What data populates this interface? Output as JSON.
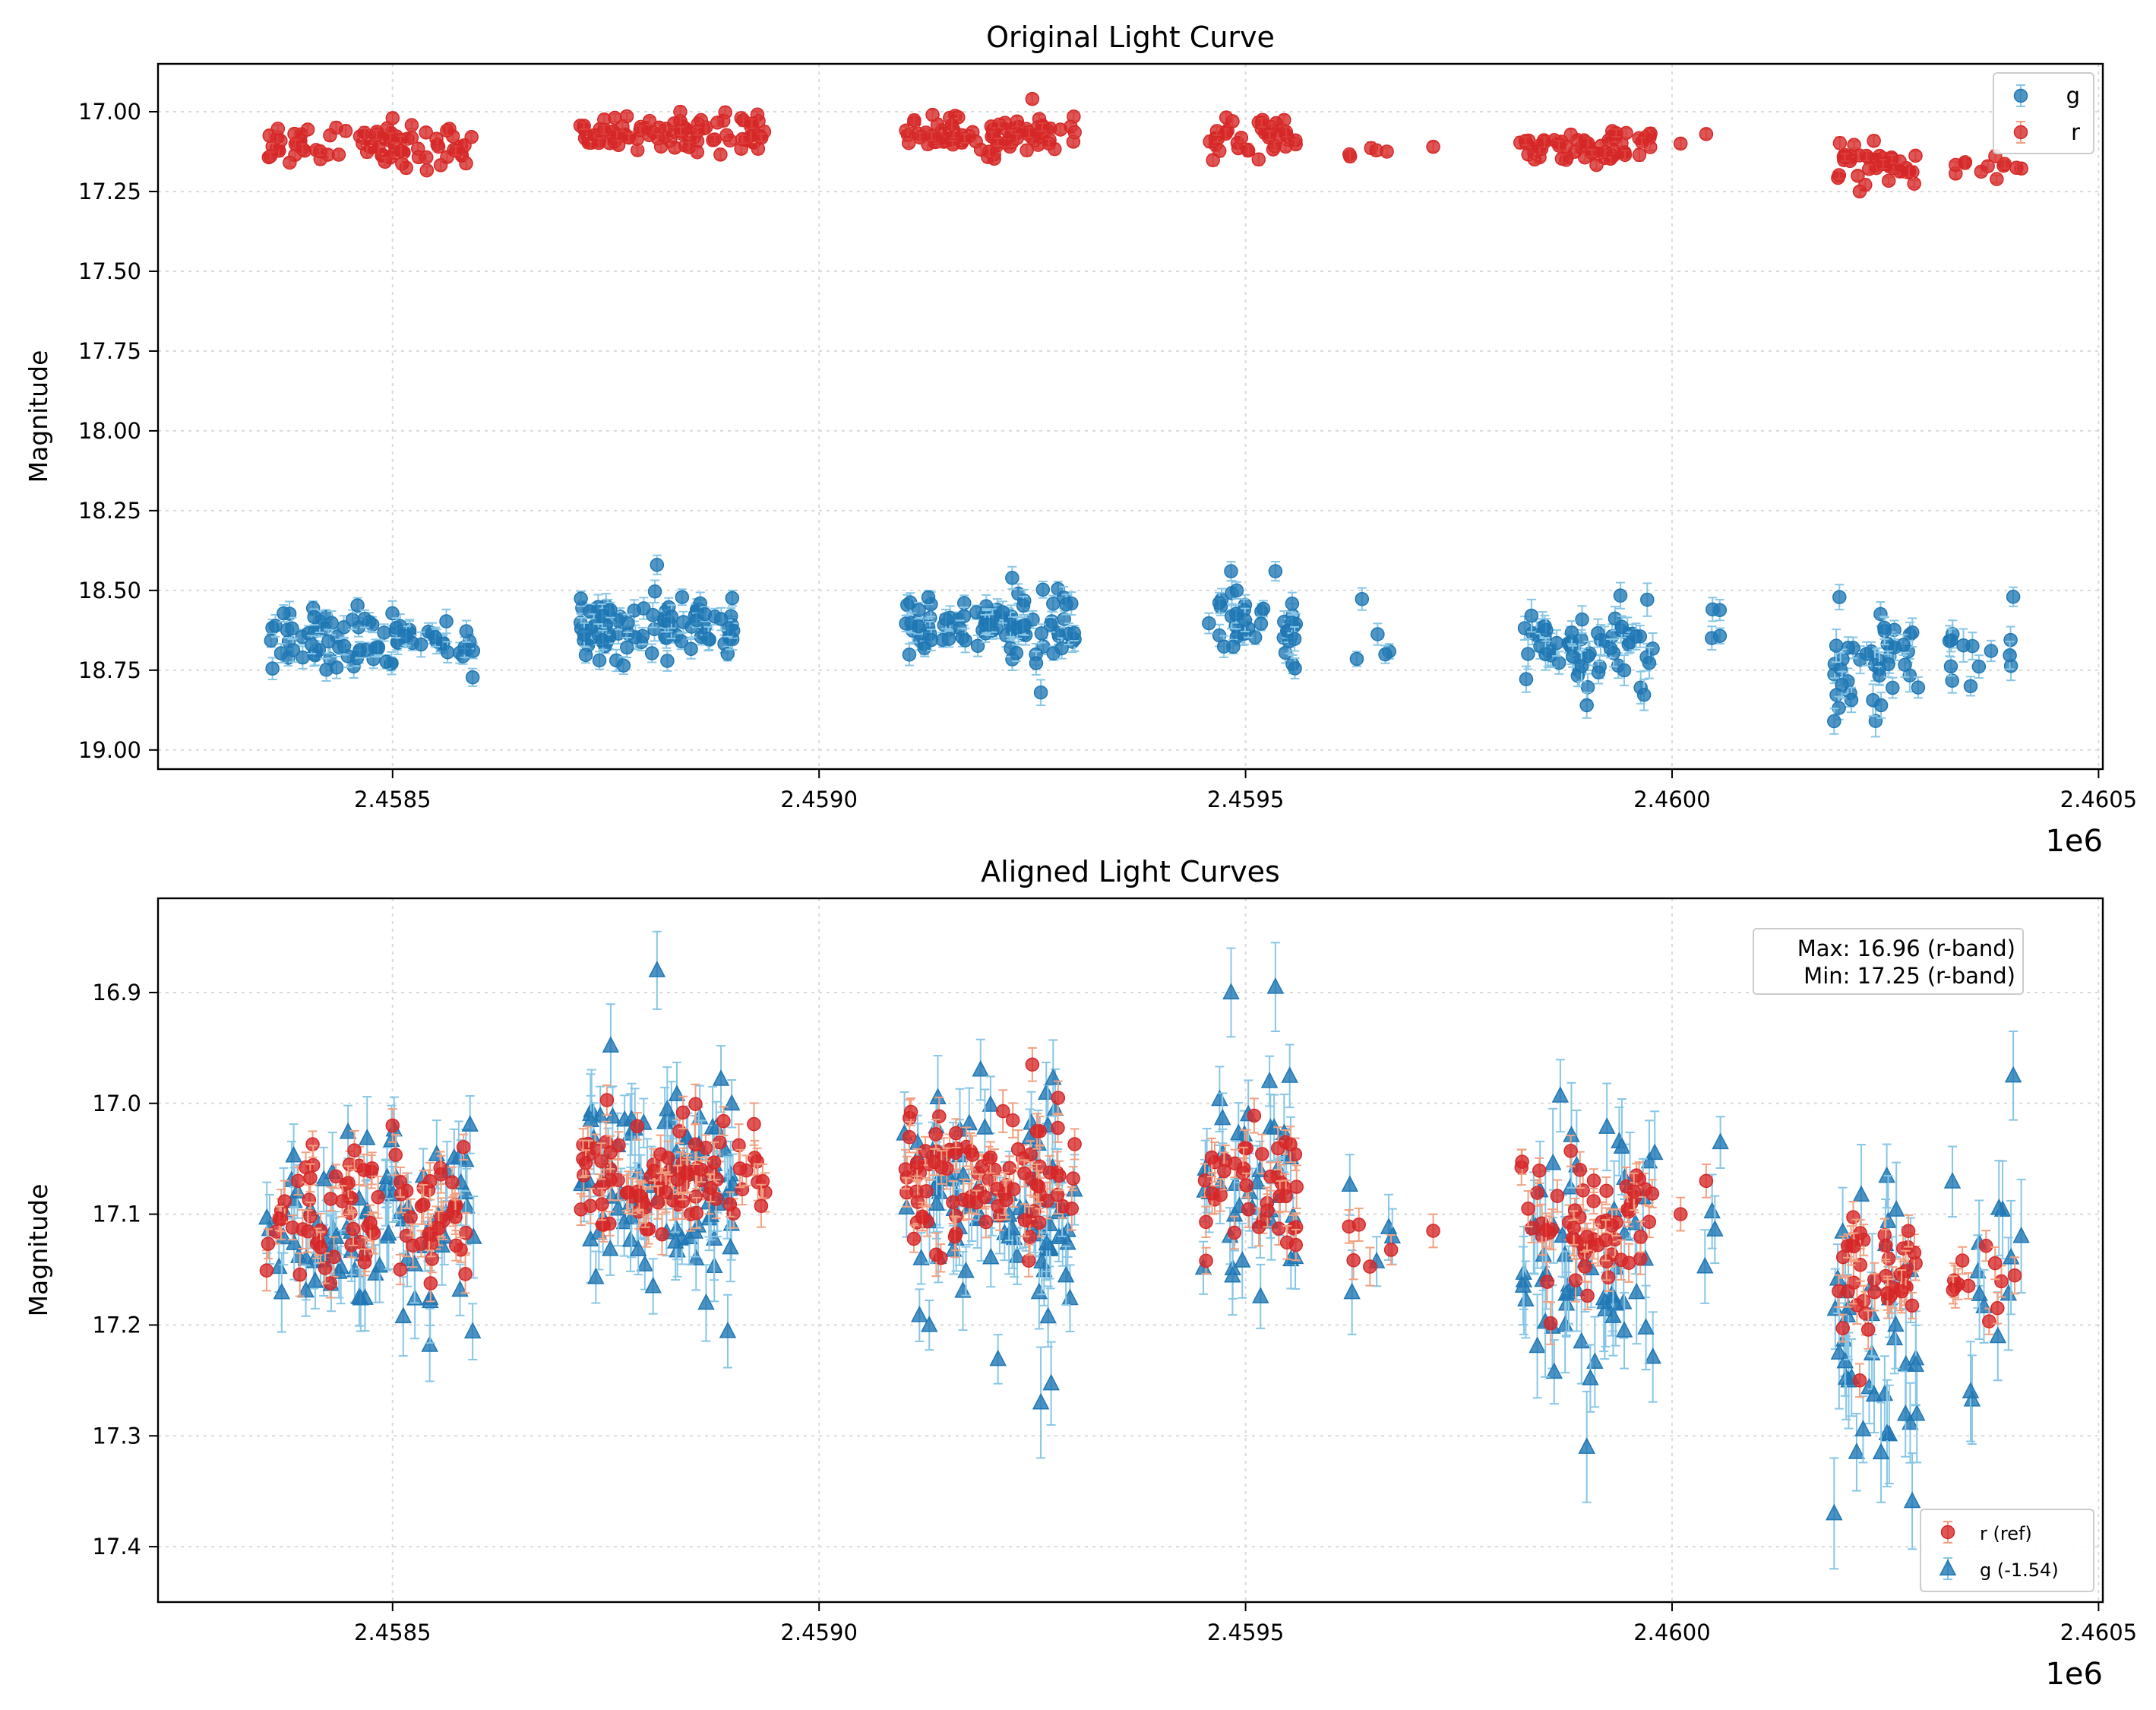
{
  "chart_data": [
    {
      "type": "scatter",
      "title": "Original Light Curve",
      "xlabel": "",
      "ylabel": "Magnitude",
      "x_offset_label": "1e6",
      "xlim": [
        2458225,
        2460505
      ],
      "ylim": [
        19.06,
        16.85
      ],
      "y_inverted": true,
      "grid": true,
      "legend_position": "top-right",
      "x_ticks": [
        2458500,
        2459000,
        2459500,
        2460000,
        2460500
      ],
      "x_tick_labels": [
        "2.4585",
        "2.4590",
        "2.4595",
        "2.4600",
        "2.4605"
      ],
      "y_ticks": [
        17.0,
        17.25,
        17.5,
        17.75,
        18.0,
        18.25,
        18.5,
        18.75,
        19.0
      ],
      "y_tick_labels": [
        "17.00",
        "17.25",
        "17.50",
        "17.75",
        "18.00",
        "18.25",
        "18.50",
        "18.75",
        "19.00"
      ],
      "series": [
        {
          "name": "g",
          "legend_label": "g",
          "marker": "circle",
          "color": "#1f77b4",
          "errcolor": "#87c6e6",
          "clusters": [
            {
              "x": [
                2458350,
                2458595
              ],
              "y": 18.65,
              "sy": 0.05,
              "n": 85,
              "err": 0.03
            },
            {
              "x": [
                2458720,
                2458900
              ],
              "y": 18.62,
              "sy": 0.05,
              "n": 90,
              "err": 0.03
            },
            {
              "x": [
                2459100,
                2459300
              ],
              "y": 18.62,
              "sy": 0.05,
              "n": 90,
              "err": 0.03
            },
            {
              "x": [
                2459450,
                2459560
              ],
              "y": 18.62,
              "sy": 0.05,
              "n": 40,
              "err": 0.03
            },
            {
              "x": [
                2459620,
                2459680
              ],
              "y": 18.68,
              "sy": 0.05,
              "n": 5,
              "err": 0.03
            },
            {
              "x": [
                2459820,
                2459980
              ],
              "y": 18.67,
              "sy": 0.06,
              "n": 60,
              "err": 0.04
            },
            {
              "x": [
                2460020,
                2460060
              ],
              "y": 18.62,
              "sy": 0.06,
              "n": 4,
              "err": 0.03
            },
            {
              "x": [
                2460190,
                2460290
              ],
              "y": 18.72,
              "sy": 0.07,
              "n": 40,
              "err": 0.04
            },
            {
              "x": [
                2460320,
                2460410
              ],
              "y": 18.7,
              "sy": 0.06,
              "n": 12,
              "err": 0.04
            }
          ],
          "points": [
            {
              "x": 2459483,
              "y": 18.44,
              "err": 0.03
            },
            {
              "x": 2459535,
              "y": 18.44,
              "err": 0.03
            },
            {
              "x": 2460400,
              "y": 18.52,
              "err": 0.03
            },
            {
              "x": 2458810,
              "y": 18.42,
              "err": 0.03
            },
            {
              "x": 2460190,
              "y": 18.91,
              "err": 0.04
            },
            {
              "x": 2460245,
              "y": 18.86,
              "err": 0.04
            },
            {
              "x": 2459900,
              "y": 18.86,
              "err": 0.04
            },
            {
              "x": 2459260,
              "y": 18.82,
              "err": 0.04
            },
            {
              "x": 2460350,
              "y": 18.8,
              "err": 0.03
            }
          ]
        },
        {
          "name": "r",
          "legend_label": "r",
          "marker": "circle",
          "color": "#d62728",
          "errcolor": "#f2a080",
          "clusters": [
            {
              "x": [
                2458350,
                2458595
              ],
              "y": 17.1,
              "sy": 0.03,
              "n": 85,
              "err": 0.015
            },
            {
              "x": [
                2458720,
                2458940
              ],
              "y": 17.07,
              "sy": 0.025,
              "n": 90,
              "err": 0.015
            },
            {
              "x": [
                2459100,
                2459300
              ],
              "y": 17.07,
              "sy": 0.03,
              "n": 90,
              "err": 0.015
            },
            {
              "x": [
                2459450,
                2459560
              ],
              "y": 17.08,
              "sy": 0.03,
              "n": 40,
              "err": 0.015
            },
            {
              "x": [
                2459620,
                2459680
              ],
              "y": 17.13,
              "sy": 0.015,
              "n": 5,
              "err": 0.015
            },
            {
              "x": [
                2459820,
                2459980
              ],
              "y": 17.11,
              "sy": 0.025,
              "n": 60,
              "err": 0.015
            },
            {
              "x": [
                2460190,
                2460290
              ],
              "y": 17.16,
              "sy": 0.03,
              "n": 40,
              "err": 0.015
            },
            {
              "x": [
                2460320,
                2460410
              ],
              "y": 17.17,
              "sy": 0.02,
              "n": 12,
              "err": 0.015
            }
          ],
          "points": [
            {
              "x": 2459250,
              "y": 16.96,
              "err": 0.015
            },
            {
              "x": 2458500,
              "y": 17.02,
              "err": 0.015
            },
            {
              "x": 2460010,
              "y": 17.1,
              "err": 0.015
            },
            {
              "x": 2460040,
              "y": 17.07,
              "err": 0.015
            },
            {
              "x": 2459720,
              "y": 17.11,
              "err": 0.015
            },
            {
              "x": 2460220,
              "y": 17.25,
              "err": 0.015
            }
          ]
        }
      ]
    },
    {
      "type": "scatter",
      "title": "Aligned Light Curves",
      "xlabel": "",
      "ylabel": "Magnitude",
      "x_offset_label": "1e6",
      "xlim": [
        2458225,
        2460505
      ],
      "ylim": [
        17.45,
        16.815
      ],
      "y_inverted": true,
      "grid": true,
      "legend_position": "bottom-right",
      "x_ticks": [
        2458500,
        2459000,
        2459500,
        2460000,
        2460500
      ],
      "x_tick_labels": [
        "2.4585",
        "2.4590",
        "2.4595",
        "2.4600",
        "2.4605"
      ],
      "y_ticks": [
        16.9,
        17.0,
        17.1,
        17.2,
        17.3,
        17.4
      ],
      "y_tick_labels": [
        "16.9",
        "17.0",
        "17.1",
        "17.2",
        "17.3",
        "17.4"
      ],
      "annotation": [
        "Max: 16.96 (r-band)",
        "Min: 17.25 (r-band)"
      ],
      "annotation_position": "top-right",
      "series": [
        {
          "name": "g (-1.54)",
          "legend_label": "g (-1.54)",
          "marker": "triangle",
          "color": "#1f77b4",
          "errcolor": "#87c6e6",
          "offset": -1.54,
          "clusters": [
            {
              "x": [
                2458350,
                2458595
              ],
              "y": 17.11,
              "sy": 0.05,
              "n": 85,
              "err": 0.03
            },
            {
              "x": [
                2458720,
                2458900
              ],
              "y": 17.08,
              "sy": 0.05,
              "n": 90,
              "err": 0.03
            },
            {
              "x": [
                2459100,
                2459300
              ],
              "y": 17.08,
              "sy": 0.05,
              "n": 90,
              "err": 0.03
            },
            {
              "x": [
                2459450,
                2459560
              ],
              "y": 17.08,
              "sy": 0.05,
              "n": 40,
              "err": 0.03
            },
            {
              "x": [
                2459620,
                2459680
              ],
              "y": 17.14,
              "sy": 0.05,
              "n": 5,
              "err": 0.03
            },
            {
              "x": [
                2459820,
                2459980
              ],
              "y": 17.13,
              "sy": 0.06,
              "n": 60,
              "err": 0.04
            },
            {
              "x": [
                2460020,
                2460060
              ],
              "y": 17.08,
              "sy": 0.06,
              "n": 4,
              "err": 0.03
            },
            {
              "x": [
                2460190,
                2460290
              ],
              "y": 17.18,
              "sy": 0.07,
              "n": 40,
              "err": 0.04
            },
            {
              "x": [
                2460320,
                2460410
              ],
              "y": 17.16,
              "sy": 0.06,
              "n": 12,
              "err": 0.04
            }
          ],
          "points": [
            {
              "x": 2459483,
              "y": 16.9,
              "err": 0.04
            },
            {
              "x": 2459535,
              "y": 16.895,
              "err": 0.04
            },
            {
              "x": 2460400,
              "y": 16.975,
              "err": 0.04
            },
            {
              "x": 2458810,
              "y": 16.88,
              "err": 0.035
            },
            {
              "x": 2460190,
              "y": 17.37,
              "err": 0.05
            },
            {
              "x": 2460245,
              "y": 17.315,
              "err": 0.045
            },
            {
              "x": 2459900,
              "y": 17.31,
              "err": 0.05
            },
            {
              "x": 2459260,
              "y": 17.27,
              "err": 0.05
            },
            {
              "x": 2460350,
              "y": 17.26,
              "err": 0.045
            }
          ]
        },
        {
          "name": "r (ref)",
          "legend_label": "r (ref)",
          "marker": "circle",
          "color": "#d62728",
          "errcolor": "#f2a080",
          "clusters": [
            {
              "x": [
                2458350,
                2458595
              ],
              "y": 17.1,
              "sy": 0.03,
              "n": 85,
              "err": 0.015
            },
            {
              "x": [
                2458720,
                2458940
              ],
              "y": 17.07,
              "sy": 0.025,
              "n": 90,
              "err": 0.015
            },
            {
              "x": [
                2459100,
                2459300
              ],
              "y": 17.07,
              "sy": 0.03,
              "n": 90,
              "err": 0.015
            },
            {
              "x": [
                2459450,
                2459560
              ],
              "y": 17.08,
              "sy": 0.03,
              "n": 40,
              "err": 0.015
            },
            {
              "x": [
                2459620,
                2459680
              ],
              "y": 17.13,
              "sy": 0.015,
              "n": 5,
              "err": 0.015
            },
            {
              "x": [
                2459820,
                2459980
              ],
              "y": 17.11,
              "sy": 0.025,
              "n": 60,
              "err": 0.015
            },
            {
              "x": [
                2460190,
                2460290
              ],
              "y": 17.16,
              "sy": 0.03,
              "n": 40,
              "err": 0.015
            },
            {
              "x": [
                2460320,
                2460410
              ],
              "y": 17.17,
              "sy": 0.02,
              "n": 12,
              "err": 0.015
            }
          ],
          "points": [
            {
              "x": 2459250,
              "y": 16.965,
              "err": 0.015
            },
            {
              "x": 2458500,
              "y": 17.02,
              "err": 0.015
            },
            {
              "x": 2460010,
              "y": 17.1,
              "err": 0.015
            },
            {
              "x": 2460040,
              "y": 17.07,
              "err": 0.015
            },
            {
              "x": 2459720,
              "y": 17.115,
              "err": 0.015
            },
            {
              "x": 2460220,
              "y": 17.25,
              "err": 0.015
            }
          ]
        }
      ]
    }
  ]
}
